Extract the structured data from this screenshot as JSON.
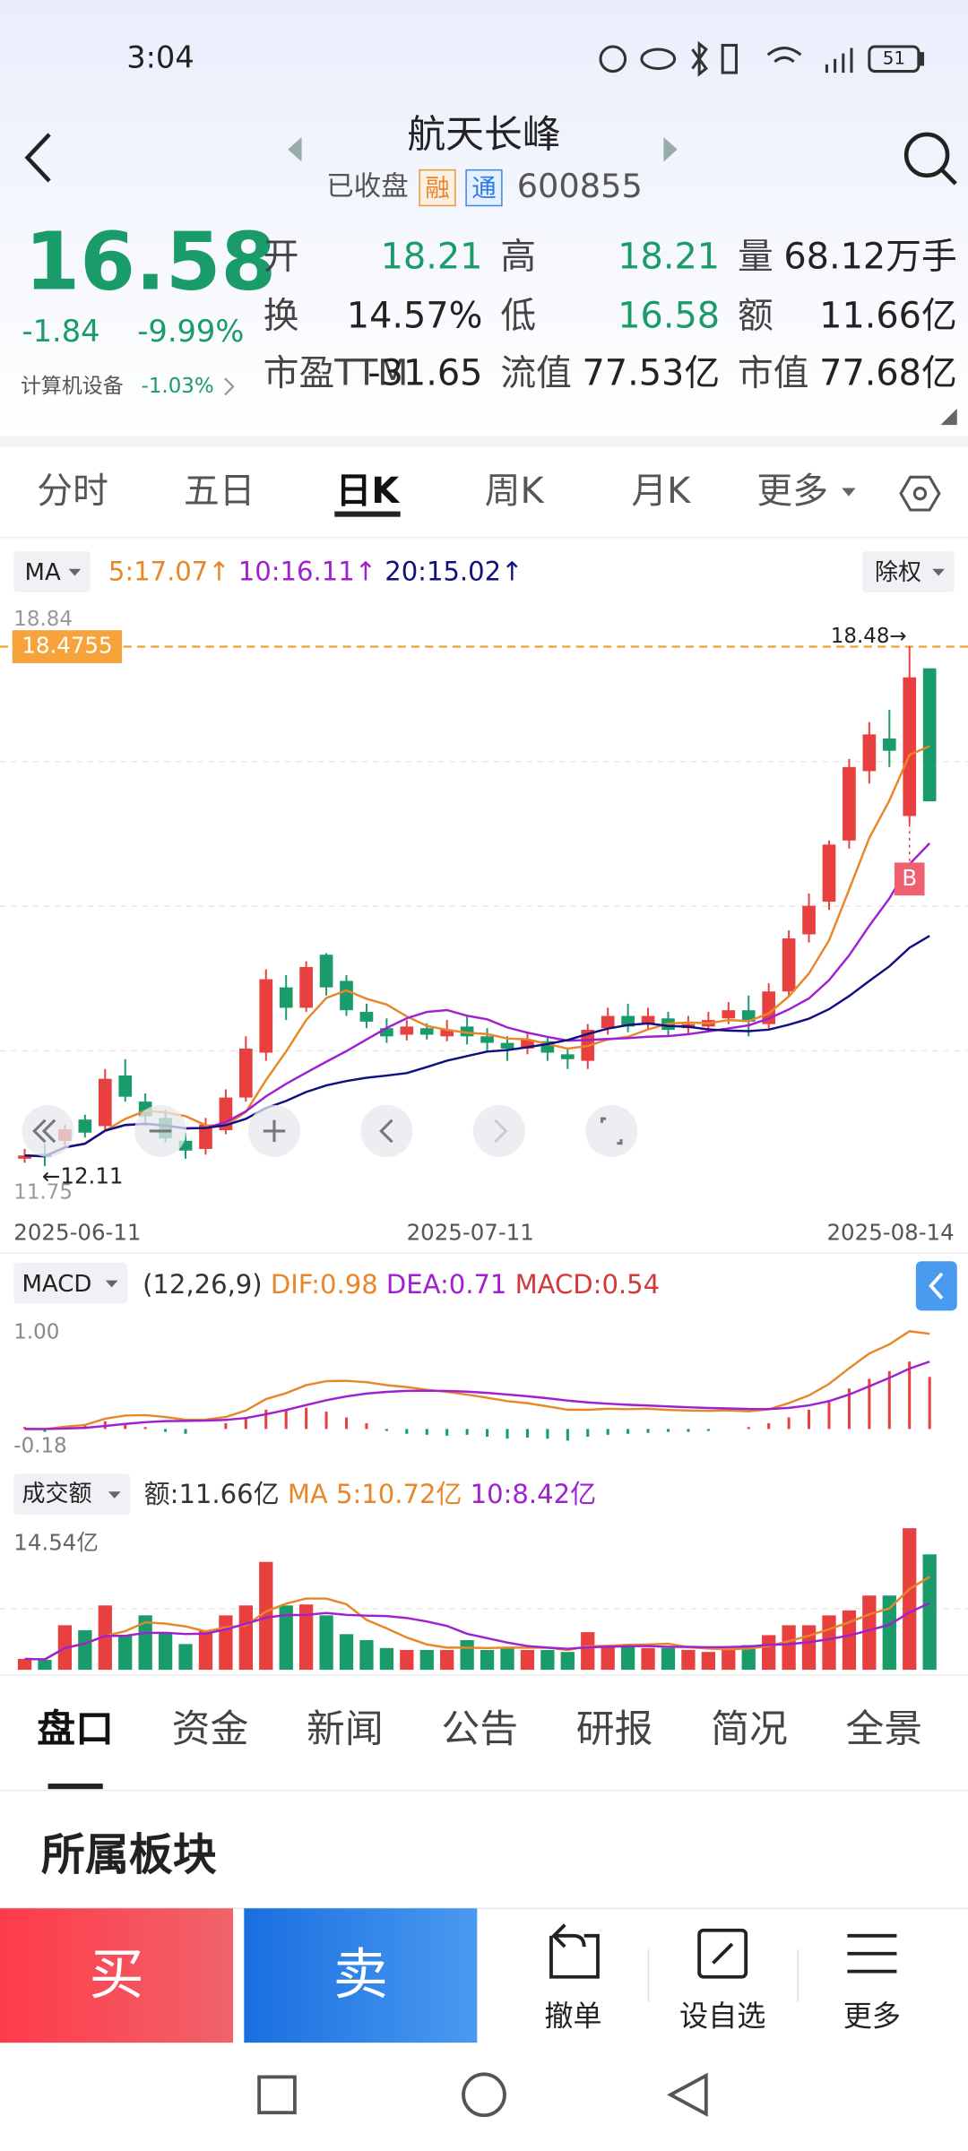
{
  "status": {
    "time": "3:04",
    "battery": "51"
  },
  "header": {
    "name": "航天长峰",
    "state": "已收盘",
    "tags": [
      "融",
      "通"
    ],
    "code": "600855"
  },
  "quote": {
    "price": "16.58",
    "change": "-1.84",
    "pct": "-9.99%",
    "sector": "计算机设备",
    "sector_pct": "-1.03%",
    "fields": [
      {
        "label": "开",
        "value": "18.21"
      },
      {
        "label": "高",
        "value": "18.21"
      },
      {
        "label": "量",
        "value": "68.12万手"
      },
      {
        "label": "换",
        "value": "14.57%"
      },
      {
        "label": "低",
        "value": "16.58"
      },
      {
        "label": "额",
        "value": "11.66亿"
      },
      {
        "label": "市盈TTM",
        "value": "-31.65"
      },
      {
        "label": "流值",
        "value": "77.53亿"
      },
      {
        "label": "市值",
        "value": "77.68亿"
      }
    ]
  },
  "tabs": {
    "items": [
      "分时",
      "五日",
      "日K",
      "周K",
      "月K",
      "更多"
    ],
    "active": 2
  },
  "ma_bar": {
    "selector": "MA",
    "items": [
      "5:17.07↑",
      "10:16.11↑",
      "20:15.02↑"
    ],
    "right": "除权"
  },
  "kline": {
    "type": "candlestick",
    "ylim": [
      11.75,
      18.84
    ],
    "yticks": [
      18.84,
      11.75
    ],
    "reference": 18.4755,
    "high_marker": {
      "value": 18.48,
      "label": "18.48→"
    },
    "low_marker": {
      "value": 12.11,
      "label": "←12.11"
    },
    "signal": "B",
    "dates": [
      "2025-06-11",
      "2025-07-11",
      "2025-08-14"
    ],
    "up_color": "#e8403f",
    "down_color": "#1a9b6a",
    "open": [
      12.2,
      12.26,
      12.42,
      12.68,
      12.6,
      13.22,
      12.9,
      12.7,
      12.42,
      12.32,
      12.55,
      12.95,
      13.5,
      14.3,
      14.05,
      14.7,
      14.38,
      14.0,
      13.8,
      13.72,
      13.8,
      13.7,
      13.82,
      13.7,
      13.62,
      13.55,
      13.64,
      13.48,
      13.4,
      13.8,
      13.95,
      13.85,
      13.92,
      13.8,
      13.82,
      13.92,
      14.02,
      13.85,
      14.25,
      14.95,
      15.35,
      16.1,
      16.95,
      17.35,
      16.4,
      18.21
    ],
    "close": [
      12.24,
      12.22,
      12.56,
      12.52,
      13.18,
      12.96,
      12.72,
      12.45,
      12.3,
      12.62,
      12.95,
      13.55,
      14.4,
      14.05,
      14.55,
      14.3,
      14.02,
      13.88,
      13.7,
      13.82,
      13.72,
      13.78,
      13.7,
      13.62,
      13.55,
      13.66,
      13.5,
      13.42,
      13.78,
      13.95,
      13.82,
      13.95,
      13.78,
      13.85,
      13.9,
      14.02,
      13.88,
      14.25,
      14.9,
      15.3,
      16.05,
      17.0,
      17.4,
      17.2,
      18.1,
      16.58
    ],
    "high": [
      12.32,
      12.38,
      12.62,
      12.74,
      13.3,
      13.42,
      13.0,
      12.8,
      12.52,
      12.7,
      13.05,
      13.7,
      14.52,
      14.45,
      14.62,
      14.72,
      14.45,
      14.1,
      13.92,
      13.9,
      13.86,
      13.9,
      13.95,
      13.8,
      13.7,
      13.75,
      13.7,
      13.55,
      13.85,
      14.05,
      14.1,
      14.05,
      14.0,
      13.95,
      14.0,
      14.12,
      14.2,
      14.35,
      15.0,
      15.45,
      16.1,
      17.1,
      17.55,
      17.7,
      18.48,
      18.21
    ],
    "low": [
      12.15,
      12.11,
      12.36,
      12.46,
      12.55,
      12.9,
      12.6,
      12.4,
      12.2,
      12.25,
      12.5,
      12.9,
      13.4,
      13.9,
      14.0,
      14.2,
      13.95,
      13.8,
      13.62,
      13.65,
      13.66,
      13.64,
      13.6,
      13.5,
      13.4,
      13.48,
      13.4,
      13.3,
      13.3,
      13.72,
      13.75,
      13.78,
      13.7,
      13.72,
      13.75,
      13.85,
      13.7,
      13.8,
      14.2,
      14.85,
      15.25,
      16.0,
      16.8,
      17.0,
      16.3,
      16.58
    ]
  },
  "macd": {
    "selector": "MACD",
    "params": "(12,26,9)",
    "dif": "DIF:0.98",
    "dea": "DEA:0.71",
    "macd": "MACD:0.54",
    "ylim": [
      -0.18,
      1
    ],
    "yticks": [
      {
        "value": 1,
        "label": "1.00"
      },
      -0.18
    ],
    "values": [
      0.02,
      -0.03,
      0.03,
      0.04,
      0.08,
      0.05,
      0.02,
      -0.03,
      -0.05,
      0,
      0.06,
      0.12,
      0.2,
      0.2,
      0.22,
      0.18,
      0.12,
      0.06,
      -0.02,
      -0.05,
      -0.06,
      -0.07,
      -0.06,
      -0.08,
      -0.1,
      -0.09,
      -0.1,
      -0.12,
      -0.08,
      -0.06,
      -0.05,
      -0.04,
      -0.03,
      -0.03,
      -0.02,
      0,
      0.02,
      0.06,
      0.12,
      0.2,
      0.3,
      0.42,
      0.52,
      0.6,
      0.7,
      0.54
    ]
  },
  "volume": {
    "selector": "成交额",
    "amount": "额:11.66亿",
    "ma5": "MA 5:10.72亿",
    "ma10": "10:8.42亿",
    "ylim": [
      0,
      14.54
    ],
    "yticks": [
      {
        "value": 14.54,
        "label": "14.54亿"
      }
    ],
    "values": [
      1.1,
      1.0,
      4.5,
      4.0,
      6.5,
      3.5,
      5.5,
      3.8,
      2.6,
      4.0,
      5.5,
      6.5,
      10.9,
      6.5,
      6.6,
      5.5,
      3.6,
      3.0,
      2.2,
      2.0,
      2.0,
      2.0,
      3.0,
      2.0,
      2.2,
      2.0,
      2.0,
      1.8,
      3.8,
      2.5,
      2.5,
      2.2,
      2.2,
      2.0,
      1.8,
      2.2,
      2.5,
      3.5,
      4.5,
      4.5,
      5.5,
      6.0,
      7.5,
      7.5,
      14.3,
      11.66
    ]
  },
  "bottom_tabs": {
    "items": [
      "盘口",
      "资金",
      "新闻",
      "公告",
      "研报",
      "简况",
      "全景"
    ],
    "active": 0
  },
  "section_title": "所属板块",
  "actions": {
    "buy": "买",
    "sell": "卖",
    "buttons": [
      "撤单",
      "设自选",
      "更多"
    ]
  }
}
